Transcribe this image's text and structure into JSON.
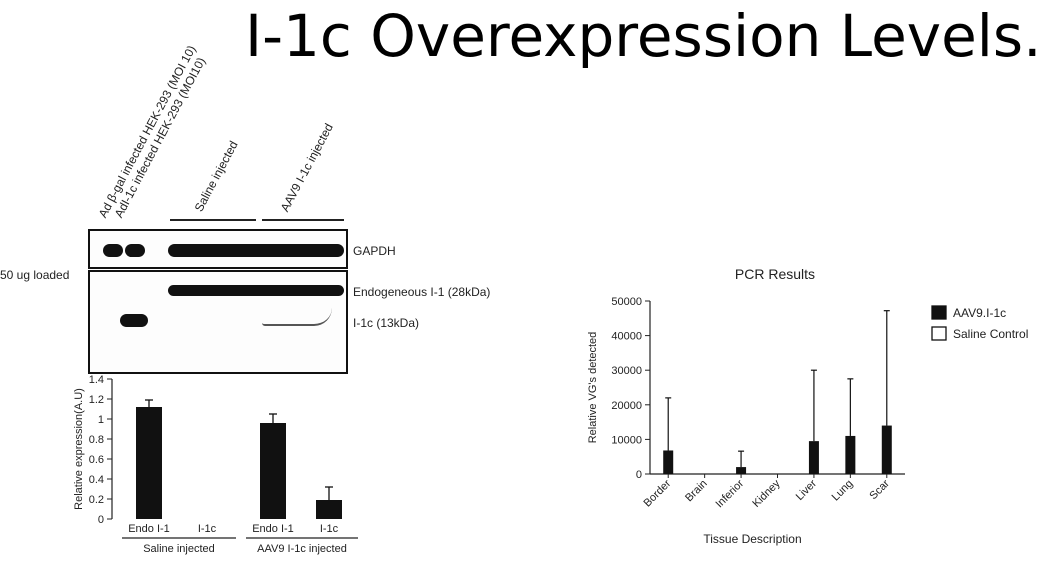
{
  "title": "I-1c Overexpression Levels.",
  "western_blot": {
    "lane_labels": [
      "Ad β-gal infected HEK-293 (MOI 10)",
      "AdI-1c infected HEK-293 (MOI10)"
    ],
    "group_labels": [
      "Saline injected",
      "AAV9 I-1c injected"
    ],
    "band_labels": [
      "GAPDH",
      "Endogeneous I-1 (28kDa)",
      "I-1c (13kDa)"
    ],
    "loaded_label": "50 ug loaded"
  },
  "chart_data": [
    {
      "type": "bar",
      "title": "",
      "ylabel": "Relative expression(A.U)",
      "ylim": [
        0,
        1.4
      ],
      "yticks": [
        "0",
        "0.2",
        "0.4",
        "0.6",
        "0.8",
        "1",
        "1.2",
        "1.4"
      ],
      "categories": [
        "Endo I-1",
        "I-1c",
        "Endo I-1",
        "I-1c"
      ],
      "groups": [
        "Saline injected",
        "AAV9 I-1c injected"
      ],
      "values": [
        1.12,
        0,
        0.96,
        0.19
      ],
      "errors": [
        0.07,
        0,
        0.09,
        0.13
      ],
      "bar_color": "#111111"
    },
    {
      "type": "bar",
      "title": "PCR Results",
      "xlabel": "Tissue Description",
      "ylabel": "Relative VG's detected",
      "ylim": [
        0,
        50000
      ],
      "yticks": [
        "0",
        "10000",
        "20000",
        "30000",
        "40000",
        "50000"
      ],
      "categories": [
        "Border",
        "Brain",
        "Inferior",
        "Kidney",
        "Liver",
        "Lung",
        "Scar"
      ],
      "series": [
        {
          "name": "AAV9.I-1c",
          "values": [
            6800,
            0,
            2000,
            0,
            9500,
            11000,
            14000
          ],
          "errors": [
            15200,
            0,
            4600,
            0,
            20500,
            16500,
            33200
          ],
          "color": "#111111"
        },
        {
          "name": "Saline Control",
          "values": [
            0,
            0,
            0,
            0,
            0,
            0,
            0
          ],
          "color": "#ffffff"
        }
      ],
      "legend": "right"
    }
  ]
}
